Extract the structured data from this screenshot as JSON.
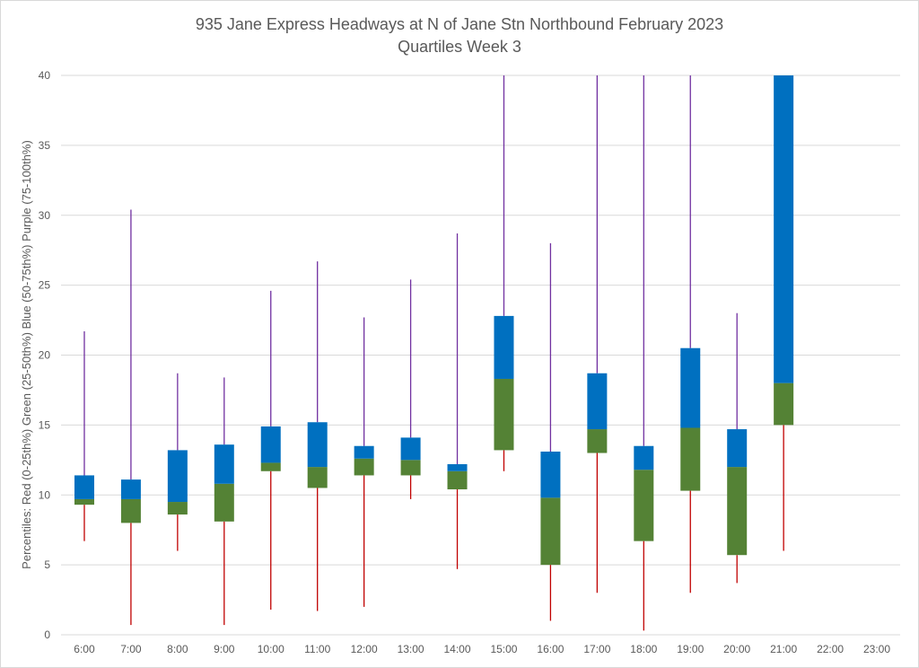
{
  "chart_data": {
    "type": "box",
    "title": "935 Jane Express Headways at N of Jane Stn Northbound February 2023",
    "subtitle": "Quartiles Week 3",
    "ylabel": "Percentiles:  Red (0-25th%)  Green (25-50th%)  Blue (50-75th%)  Purple (75-100th%)",
    "ylim": [
      0,
      40
    ],
    "yticks": [
      0,
      5,
      10,
      15,
      20,
      25,
      30,
      35,
      40
    ],
    "grid": true,
    "categories": [
      "6:00",
      "7:00",
      "8:00",
      "9:00",
      "10:00",
      "11:00",
      "12:00",
      "13:00",
      "14:00",
      "15:00",
      "16:00",
      "17:00",
      "18:00",
      "19:00",
      "20:00",
      "21:00",
      "22:00",
      "23:00"
    ],
    "min": [
      6.7,
      0.7,
      6.0,
      0.7,
      1.8,
      1.7,
      2.0,
      9.7,
      4.7,
      11.7,
      1.0,
      3.0,
      0.3,
      3.0,
      3.7,
      6.0,
      null,
      null
    ],
    "q1": [
      9.3,
      8.0,
      8.6,
      8.1,
      11.7,
      10.5,
      11.4,
      11.4,
      10.4,
      13.2,
      5.0,
      13.0,
      6.7,
      10.3,
      5.7,
      15.0,
      null,
      null
    ],
    "median": [
      9.7,
      9.7,
      9.5,
      10.8,
      12.3,
      12.0,
      12.6,
      12.5,
      11.7,
      18.3,
      9.8,
      14.7,
      11.8,
      14.8,
      12.0,
      18.0,
      null,
      null
    ],
    "q3": [
      11.4,
      11.1,
      13.2,
      13.6,
      14.9,
      15.2,
      13.5,
      14.1,
      12.2,
      22.8,
      13.1,
      18.7,
      13.5,
      20.5,
      14.7,
      40.0,
      null,
      null
    ],
    "max": [
      21.7,
      30.4,
      18.7,
      18.4,
      24.6,
      26.7,
      22.7,
      25.4,
      28.7,
      40.0,
      28.0,
      40.0,
      40.0,
      40.0,
      23.0,
      40.0,
      null,
      null
    ],
    "colors": {
      "lower_whisker": "#c00000",
      "lower_box": "#548235",
      "upper_box": "#0070c0",
      "upper_whisker": "#7030a0",
      "grid": "#d9d9d9",
      "text": "#595959"
    }
  }
}
